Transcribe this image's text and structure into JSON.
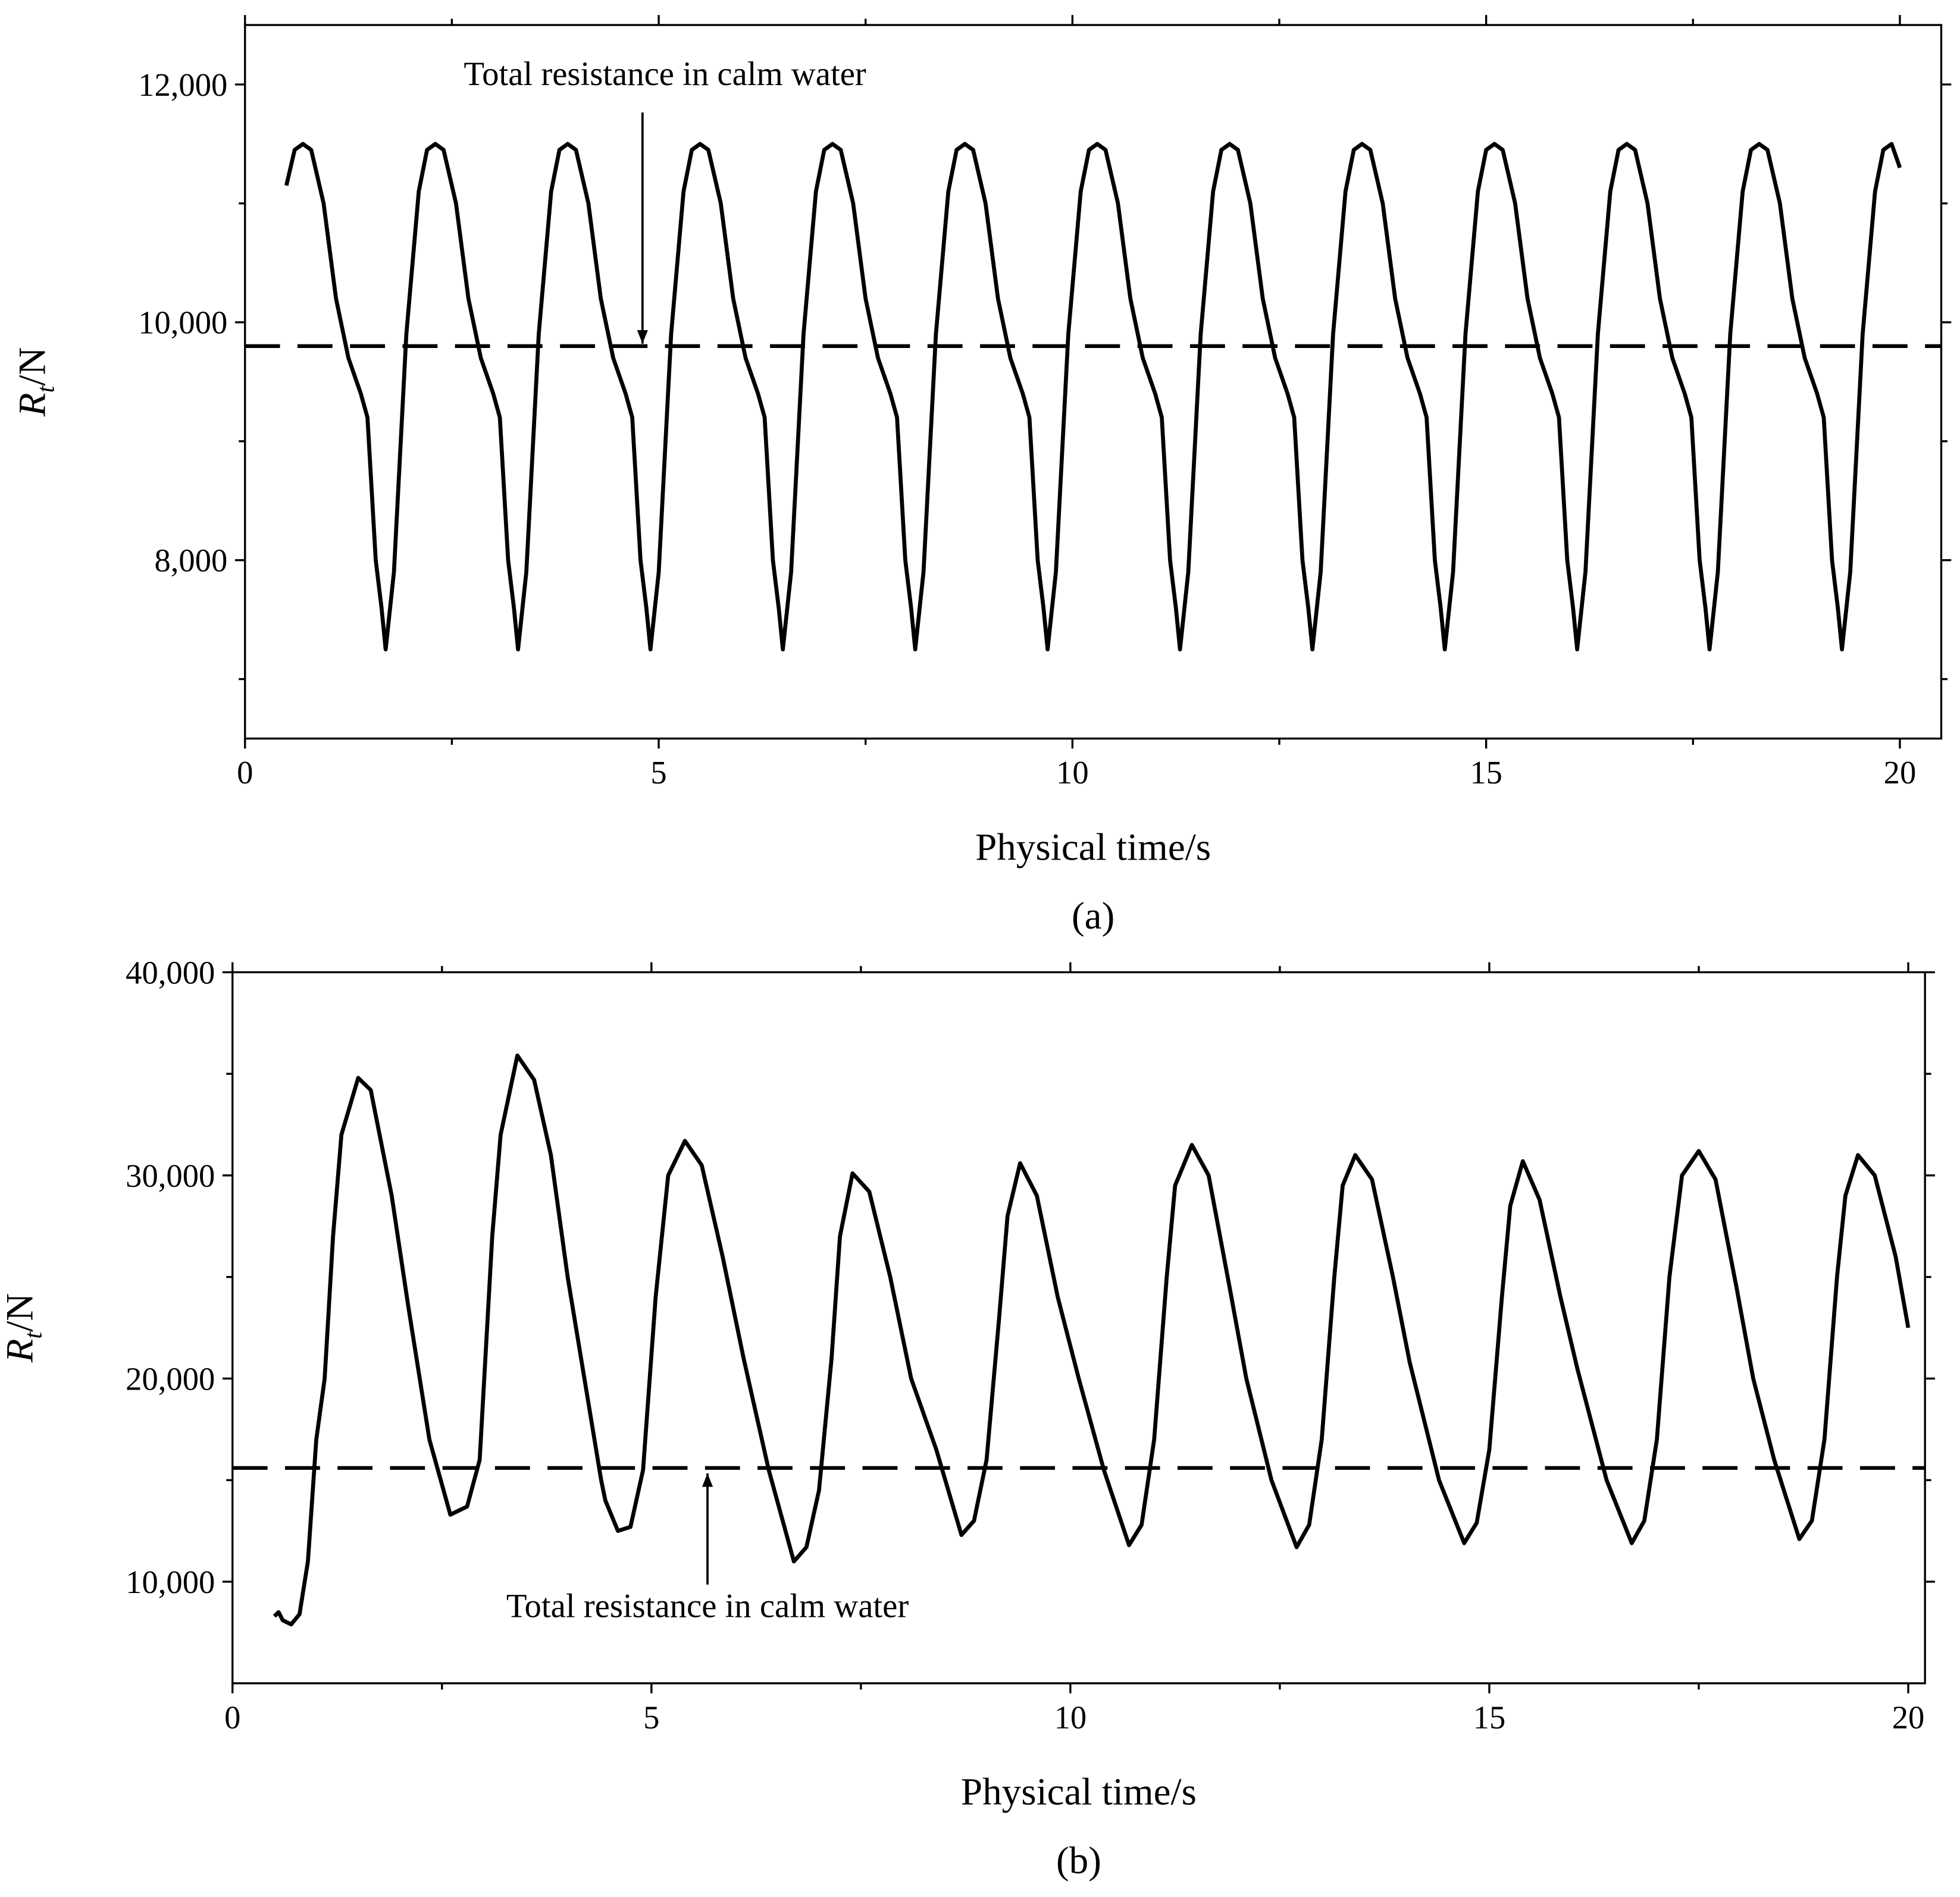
{
  "chart_data": [
    {
      "type": "line",
      "panel_label": "(a)",
      "xlabel": "Physical time/s",
      "ylabel": {
        "symbol": "R",
        "subscript": "t",
        "unit": "/N"
      },
      "xlim": [
        0,
        20.5
      ],
      "xticks": [
        0,
        5,
        10,
        15,
        20
      ],
      "xminor": [
        2.5,
        7.5,
        12.5,
        17.5
      ],
      "ylim": [
        6500,
        12500
      ],
      "yticks": [
        {
          "value": 8000,
          "label": "8,000"
        },
        {
          "value": 10000,
          "label": "10,000"
        },
        {
          "value": 12000,
          "label": "12,000"
        }
      ],
      "yminor": [
        7000,
        9000,
        11000
      ],
      "reference": {
        "value": 9800,
        "label": "Total resistance in calm water",
        "color": "#000000"
      },
      "series": [
        {
          "color": "#000000",
          "x": [
            0.5,
            0.6,
            0.7,
            0.8,
            0.95,
            1.1,
            1.25,
            1.4,
            1.48,
            1.58,
            1.65,
            1.7,
            1.8,
            1.95,
            2.1,
            2.2,
            2.3,
            2.4,
            2.55,
            2.7,
            2.85,
            3,
            3.08,
            3.18,
            3.25,
            3.3,
            3.4,
            3.55,
            3.7,
            3.8,
            3.9,
            4,
            4.15,
            4.3,
            4.45,
            4.6,
            4.68,
            4.78,
            4.85,
            4.9,
            5,
            5.15,
            5.3,
            5.4,
            5.5,
            5.6,
            5.75,
            5.9,
            6.05,
            6.2,
            6.28,
            6.38,
            6.45,
            6.5,
            6.6,
            6.75,
            6.9,
            7,
            7.1,
            7.2,
            7.35,
            7.5,
            7.65,
            7.8,
            7.88,
            7.98,
            8.05,
            8.1,
            8.2,
            8.35,
            8.5,
            8.6,
            8.7,
            8.8,
            8.95,
            9.1,
            9.25,
            9.4,
            9.48,
            9.58,
            9.65,
            9.7,
            9.8,
            9.95,
            10.1,
            10.2,
            10.3,
            10.4,
            10.55,
            10.7,
            10.85,
            11,
            11.08,
            11.18,
            11.25,
            11.3,
            11.4,
            11.55,
            11.7,
            11.8,
            11.9,
            12,
            12.15,
            12.3,
            12.45,
            12.6,
            12.68,
            12.78,
            12.85,
            12.9,
            13,
            13.15,
            13.3,
            13.4,
            13.5,
            13.6,
            13.75,
            13.9,
            14.05,
            14.2,
            14.28,
            14.38,
            14.45,
            14.5,
            14.6,
            14.75,
            14.9,
            15,
            15.1,
            15.2,
            15.35,
            15.5,
            15.65,
            15.8,
            15.88,
            15.98,
            16.05,
            16.1,
            16.2,
            16.35,
            16.5,
            16.6,
            16.7,
            16.8,
            16.95,
            17.1,
            17.25,
            17.4,
            17.48,
            17.58,
            17.65,
            17.7,
            17.8,
            17.95,
            18.1,
            18.2,
            18.3,
            18.4,
            18.55,
            18.7,
            18.85,
            19,
            19.08,
            19.18,
            19.25,
            19.3,
            19.4,
            19.55,
            19.7,
            19.8,
            19.9,
            20
          ],
          "values": [
            11150,
            11450,
            11500,
            11450,
            11000,
            10200,
            9700,
            9400,
            9200,
            8000,
            7600,
            7250,
            7900,
            9900,
            11100,
            11450,
            11500,
            11450,
            11000,
            10200,
            9700,
            9400,
            9200,
            8000,
            7600,
            7250,
            7900,
            9900,
            11100,
            11450,
            11500,
            11450,
            11000,
            10200,
            9700,
            9400,
            9200,
            8000,
            7600,
            7250,
            7900,
            9900,
            11100,
            11450,
            11500,
            11450,
            11000,
            10200,
            9700,
            9400,
            9200,
            8000,
            7600,
            7250,
            7900,
            9900,
            11100,
            11450,
            11500,
            11450,
            11000,
            10200,
            9700,
            9400,
            9200,
            8000,
            7600,
            7250,
            7900,
            9900,
            11100,
            11450,
            11500,
            11450,
            11000,
            10200,
            9700,
            9400,
            9200,
            8000,
            7600,
            7250,
            7900,
            9900,
            11100,
            11450,
            11500,
            11450,
            11000,
            10200,
            9700,
            9400,
            9200,
            8000,
            7600,
            7250,
            7900,
            9900,
            11100,
            11450,
            11500,
            11450,
            11000,
            10200,
            9700,
            9400,
            9200,
            8000,
            7600,
            7250,
            7900,
            9900,
            11100,
            11450,
            11500,
            11450,
            11000,
            10200,
            9700,
            9400,
            9200,
            8000,
            7600,
            7250,
            7900,
            9900,
            11100,
            11450,
            11500,
            11450,
            11000,
            10200,
            9700,
            9400,
            9200,
            8000,
            7600,
            7250,
            7900,
            9900,
            11100,
            11450,
            11500,
            11450,
            11000,
            10200,
            9700,
            9400,
            9200,
            8000,
            7600,
            7250,
            7900,
            9900,
            11100,
            11450,
            11500,
            11450,
            11000,
            10200,
            9700,
            9400,
            9200,
            8000,
            7600,
            7250,
            7900,
            9900,
            11100,
            11450,
            11500,
            11300
          ]
        }
      ]
    },
    {
      "type": "line",
      "panel_label": "(b)",
      "xlabel": "Physical time/s",
      "ylabel": {
        "symbol": "R",
        "subscript": "t",
        "unit": "/N"
      },
      "xlim": [
        0,
        20.2
      ],
      "xticks": [
        0,
        5,
        10,
        15,
        20
      ],
      "xminor": [
        2.5,
        7.5,
        12.5,
        17.5
      ],
      "ylim": [
        5000,
        40000
      ],
      "yticks": [
        {
          "value": 10000,
          "label": "10,000"
        },
        {
          "value": 20000,
          "label": "20,000"
        },
        {
          "value": 30000,
          "label": "30,000"
        },
        {
          "value": 40000,
          "label": "40,000"
        }
      ],
      "yminor": [
        15000,
        25000,
        35000
      ],
      "reference": {
        "value": 15600,
        "label": "Total resistance in calm water",
        "color": "#000000"
      },
      "series": [
        {
          "color": "#000000",
          "x": [
            0.5,
            0.55,
            0.6,
            0.7,
            0.8,
            0.9,
            1.0,
            1.1,
            1.2,
            1.3,
            1.5,
            1.65,
            1.9,
            2.1,
            2.35,
            2.6,
            2.8,
            2.95,
            3.1,
            3.2,
            3.4,
            3.6,
            3.8,
            4.0,
            4.2,
            4.4,
            4.45,
            4.6,
            4.75,
            4.9,
            5.05,
            5.2,
            5.4,
            5.6,
            5.85,
            6.1,
            6.4,
            6.7,
            6.85,
            7.0,
            7.15,
            7.25,
            7.4,
            7.6,
            7.85,
            8.1,
            8.4,
            8.7,
            8.85,
            9.0,
            9.15,
            9.25,
            9.4,
            9.6,
            9.85,
            10.1,
            10.4,
            10.7,
            10.85,
            11.0,
            11.15,
            11.25,
            11.45,
            11.65,
            11.9,
            12.1,
            12.4,
            12.7,
            12.85,
            13.0,
            13.15,
            13.25,
            13.4,
            13.6,
            13.85,
            14.05,
            14.4,
            14.7,
            14.85,
            15.0,
            15.15,
            15.25,
            15.4,
            15.6,
            15.85,
            16.05,
            16.4,
            16.7,
            16.85,
            17.0,
            17.15,
            17.3,
            17.5,
            17.7,
            17.95,
            18.15,
            18.4,
            18.7,
            18.85,
            19.0,
            19.15,
            19.25,
            19.4,
            19.6,
            19.85,
            20.0
          ],
          "values": [
            8300,
            8500,
            8100,
            7900,
            8400,
            11000,
            17000,
            20000,
            27000,
            32000,
            34800,
            34200,
            29000,
            23500,
            17000,
            13300,
            13700,
            16000,
            27000,
            32000,
            35900,
            34700,
            31000,
            25000,
            20000,
            15000,
            14000,
            12500,
            12700,
            15500,
            24000,
            30000,
            31700,
            30500,
            26000,
            21000,
            15500,
            11000,
            11700,
            14500,
            21000,
            27000,
            30100,
            29200,
            25000,
            20000,
            16500,
            12300,
            13000,
            16000,
            23000,
            28000,
            30600,
            29000,
            24000,
            20000,
            15500,
            11800,
            12800,
            17000,
            25000,
            29500,
            31500,
            30000,
            24500,
            20000,
            15000,
            11700,
            12800,
            17000,
            25000,
            29500,
            31000,
            29800,
            25000,
            20800,
            15000,
            11900,
            12900,
            16500,
            24000,
            28500,
            30700,
            28800,
            24000,
            20500,
            15000,
            11900,
            13000,
            17000,
            25000,
            30000,
            31200,
            29800,
            24500,
            20000,
            16000,
            12100,
            13000,
            17000,
            25000,
            29000,
            31000,
            30000,
            26000,
            22500
          ]
        }
      ]
    }
  ]
}
